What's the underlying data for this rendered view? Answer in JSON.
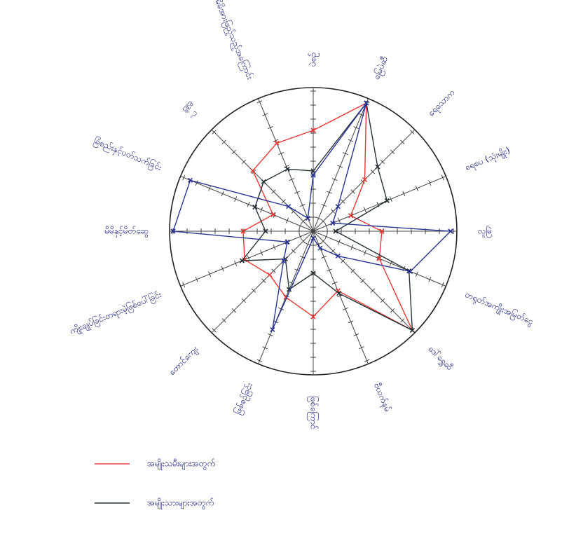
{
  "chart_data": {
    "type": "radar",
    "categories": [
      "ပဲစဉ်",
      "မြေပဲဆီ",
      "ရေသောက",
      "ရေစပ (သုံးမျိုး)",
      "လူမြဲ",
      "တရုတ်အကျိုးအမြတ်ငွေ",
      "ဒေါ်ရွှေဆီ",
      "ဗီယက်နမ်",
      "ဖြစ်ကြောင်",
      "ဖြစ်စဉ်ခြင်း",
      "တောင်ကျေး",
      "ကျိုးချုပ်ခြင်းတရားမဲ့ဖြစ်ပေါ်ခြင်း",
      "မိမိနှင့်မိတ်ဆွေ",
      "ခြံစည်းနှင့်ပတ်သက်ခြင်း",
      "မြို့ ၇",
      "မိမိအားဖြည့်သည့်အကြောင်း"
    ],
    "rlim": [
      0,
      10
    ],
    "rticks": [
      1,
      2,
      3,
      4,
      5,
      6,
      7,
      8,
      9,
      10
    ],
    "series": [
      {
        "name": "အမျိုးသမီးများအတွက်",
        "color": "#e53935",
        "values": [
          7.2,
          9.9,
          5.2,
          2.9,
          4.9,
          5.1,
          10,
          4.6,
          6.1,
          5.1,
          4.4,
          5.3,
          5.0,
          3.1,
          6.1,
          6.8
        ]
      },
      {
        "name": "အမျိုးသားများအတွက်",
        "color": "#263238",
        "values": [
          4.3,
          9.9,
          6.5,
          5.7,
          1.6,
          7.4,
          10,
          4.8,
          3.0,
          4.5,
          2.8,
          5.5,
          3.4,
          4.5,
          5.0,
          4.8
        ]
      },
      {
        "color": "#283593",
        "values": [
          4.0,
          9.9,
          2.5,
          1.5,
          9.8,
          7.5,
          2.5,
          1.3,
          0.5,
          7.6,
          3.0,
          2.0,
          10,
          9.5,
          2.5,
          1.0
        ]
      }
    ],
    "legend": "bottom-left"
  }
}
